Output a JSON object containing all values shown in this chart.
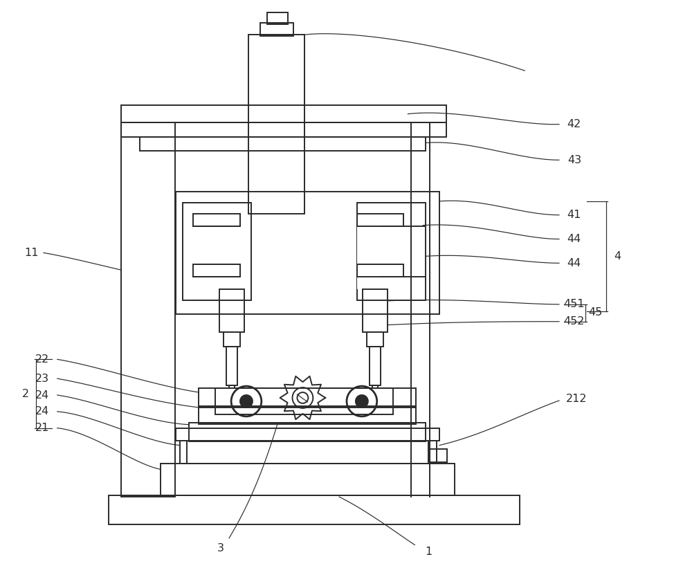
{
  "bg_color": "#ffffff",
  "line_color": "#2a2a2a",
  "lw": 1.4,
  "lw_thin": 0.85,
  "fig_w": 10.0,
  "fig_h": 8.47
}
